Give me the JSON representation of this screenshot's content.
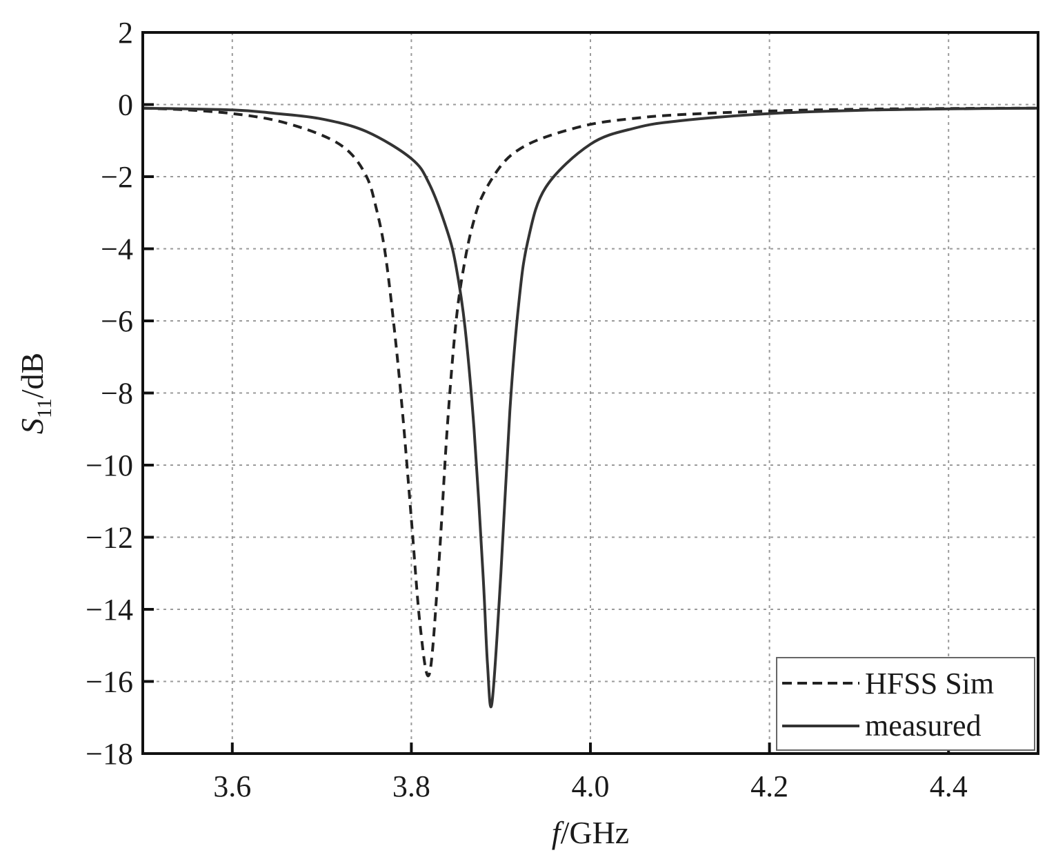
{
  "chart_data": {
    "type": "line",
    "xlabel_italic": "f",
    "xlabel_rest": "/GHz",
    "ylabel_main": "S",
    "ylabel_sub": "11",
    "ylabel_rest": "/dB",
    "xlim": [
      3.5,
      4.5
    ],
    "ylim": [
      -18,
      2
    ],
    "xticks": [
      3.6,
      3.8,
      4.0,
      4.2,
      4.4
    ],
    "xtick_labels": [
      "3.6",
      "3.8",
      "4.0",
      "4.2",
      "4.4"
    ],
    "yticks": [
      2,
      0,
      -2,
      -4,
      -6,
      -8,
      -10,
      -12,
      -14,
      -16,
      -18
    ],
    "ytick_labels": [
      "2",
      "0",
      "−2",
      "−4",
      "−6",
      "−8",
      "−10",
      "−12",
      "−14",
      "−16",
      "−18"
    ],
    "grid": true,
    "legend_position": "bottom-right",
    "series": [
      {
        "name": "HFSS Sim",
        "style": "dashed",
        "color": "#222222",
        "x": [
          3.5,
          3.55,
          3.6,
          3.65,
          3.7,
          3.73,
          3.75,
          3.76,
          3.77,
          3.78,
          3.79,
          3.8,
          3.81,
          3.82,
          3.83,
          3.84,
          3.85,
          3.86,
          3.87,
          3.88,
          3.9,
          3.92,
          3.95,
          4.0,
          4.05,
          4.1,
          4.2,
          4.3,
          4.4,
          4.5
        ],
        "y": [
          -0.1,
          -0.15,
          -0.25,
          -0.45,
          -0.85,
          -1.3,
          -2.0,
          -2.8,
          -4.0,
          -6.0,
          -8.5,
          -11.5,
          -14.5,
          -15.8,
          -13.0,
          -9.0,
          -6.0,
          -4.3,
          -3.2,
          -2.5,
          -1.7,
          -1.25,
          -0.9,
          -0.55,
          -0.38,
          -0.28,
          -0.18,
          -0.13,
          -0.11,
          -0.1
        ]
      },
      {
        "name": "measured",
        "style": "solid",
        "color": "#333333",
        "x": [
          3.5,
          3.6,
          3.65,
          3.7,
          3.75,
          3.8,
          3.82,
          3.84,
          3.85,
          3.86,
          3.87,
          3.88,
          3.885,
          3.89,
          3.9,
          3.91,
          3.92,
          3.93,
          3.95,
          4.0,
          4.05,
          4.1,
          4.2,
          4.3,
          4.4,
          4.5
        ],
        "y": [
          -0.1,
          -0.15,
          -0.25,
          -0.4,
          -0.75,
          -1.5,
          -2.2,
          -3.5,
          -4.5,
          -6.2,
          -9.0,
          -13.0,
          -15.5,
          -16.6,
          -13.0,
          -8.5,
          -5.5,
          -3.8,
          -2.3,
          -1.1,
          -0.65,
          -0.45,
          -0.25,
          -0.16,
          -0.12,
          -0.1
        ]
      }
    ]
  }
}
